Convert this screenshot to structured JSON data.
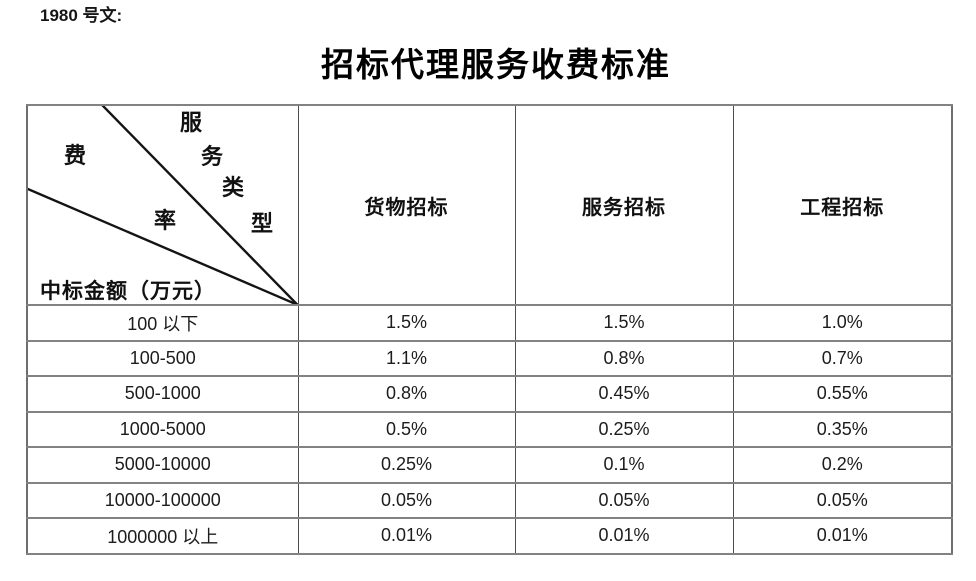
{
  "page": {
    "doc_ref": "1980 号文:",
    "title": "招标代理服务收费标准"
  },
  "table": {
    "corner": {
      "service_type_chars": [
        "服",
        "务",
        "类",
        "型"
      ],
      "fee_rate_chars": [
        "费",
        "率"
      ],
      "amount_label": "中标金额（万元）"
    },
    "column_headers": [
      "货物招标",
      "服务招标",
      "工程招标"
    ],
    "rows": [
      {
        "label": "100 以下",
        "values": [
          "1.5%",
          "1.5%",
          "1.0%"
        ]
      },
      {
        "label": "100-500",
        "values": [
          "1.1%",
          "0.8%",
          "0.7%"
        ]
      },
      {
        "label": "500-1000",
        "values": [
          "0.8%",
          "0.45%",
          "0.55%"
        ]
      },
      {
        "label": "1000-5000",
        "values": [
          "0.5%",
          "0.25%",
          "0.35%"
        ]
      },
      {
        "label": "5000-10000",
        "values": [
          "0.25%",
          "0.1%",
          "0.2%"
        ]
      },
      {
        "label": "10000-100000",
        "values": [
          "0.05%",
          "0.05%",
          "0.05%"
        ]
      },
      {
        "label": "1000000 以上",
        "values": [
          "0.01%",
          "0.01%",
          "0.01%"
        ]
      }
    ]
  },
  "colors": {
    "text": "#1a1a1a",
    "horizontal_rule": "#828282",
    "vertical_rule": "#4d4d4d",
    "outer_border": "#6e6e6e",
    "diagonal_line": "#141414"
  }
}
